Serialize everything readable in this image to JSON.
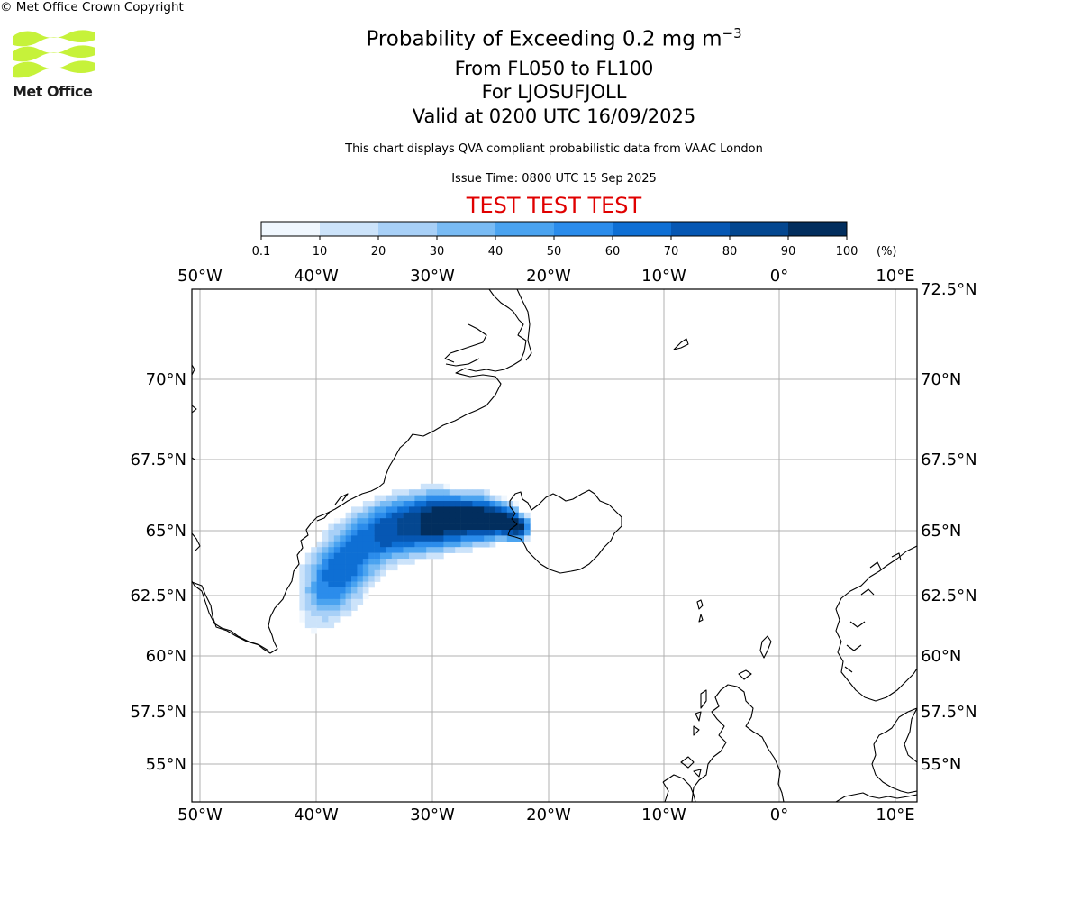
{
  "logo": {
    "text": "Met Office",
    "accent_color": "#c6f23a"
  },
  "header": {
    "title_prefix": "Probability of Exceeding 0.2 mg m",
    "title_exponent": "−3",
    "subtitle_levels": "From FL050 to FL100",
    "subtitle_location": "For LJOSUFJOLL",
    "subtitle_valid": "Valid at 0200 UTC 16/09/2025",
    "note": "This chart displays QVA compliant probabilistic data from VAAC London",
    "issue_time": "Issue Time: 0800 UTC 15 Sep 2025",
    "test_banner": "TEST TEST TEST",
    "test_color": "#e00000"
  },
  "colorbar": {
    "ticks": [
      "0.1",
      "10",
      "20",
      "30",
      "40",
      "50",
      "60",
      "70",
      "80",
      "90",
      "100"
    ],
    "unit": "(%)",
    "colors": [
      "#f0f7fe",
      "#cce3fa",
      "#a8d0f7",
      "#79bbf4",
      "#4aa3f0",
      "#2b8ceb",
      "#0e6fd4",
      "#0657b3",
      "#044790",
      "#022e5e"
    ]
  },
  "map": {
    "lon_labels": [
      "50°W",
      "40°W",
      "30°W",
      "20°W",
      "10°W",
      "0°",
      "10°E"
    ],
    "lat_labels": [
      "72.5°N",
      "70°N",
      "67.5°N",
      "65°N",
      "62.5°N",
      "60°N",
      "57.5°N",
      "55°N"
    ],
    "lat_labels_left": [
      "70°N",
      "67.5°N",
      "65°N",
      "62.5°N",
      "60°N",
      "57.5°N",
      "55°N"
    ],
    "grid_color": "#b0b0b0",
    "land_features": [
      "greenland-coast",
      "iceland-coast",
      "jan-mayen",
      "scotland-coast",
      "norway-coast",
      "faroe-islands",
      "shetland-islands"
    ]
  },
  "footer": {
    "copyright": "© Met Office Crown Copyright"
  }
}
